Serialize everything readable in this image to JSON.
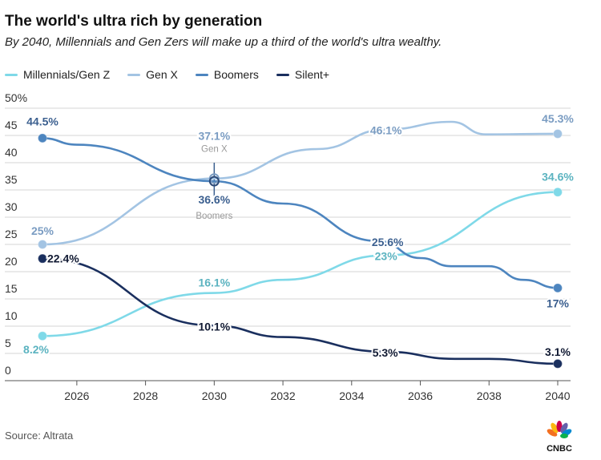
{
  "chart_data": {
    "type": "line",
    "title": "The world's ultra rich by generation",
    "subtitle": "By 2040, Millennials and Gen Zers will make up a third of the world's ultra wealthy.",
    "source": "Source: Altrata",
    "xlabel": "",
    "ylabel": "",
    "xlim": [
      2025,
      2040
    ],
    "ylim": [
      0,
      50
    ],
    "x_ticks": [
      2026,
      2028,
      2030,
      2032,
      2034,
      2036,
      2038,
      2040
    ],
    "y_ticks": [
      0,
      5,
      10,
      15,
      20,
      25,
      30,
      35,
      40,
      45,
      50
    ],
    "y_tick_labels": [
      "0",
      "5",
      "10",
      "15",
      "20",
      "25",
      "30",
      "35",
      "40",
      "45",
      "50%"
    ],
    "grid": true,
    "legend_position": "top-left",
    "series": [
      {
        "name": "Millennials/Gen Z",
        "color": "#7fd9e8",
        "label_color": "#5bb3c0",
        "points": [
          [
            2025,
            8.2
          ],
          [
            2030,
            16.1
          ],
          [
            2032,
            18.5
          ],
          [
            2035,
            23
          ],
          [
            2040,
            34.6
          ]
        ],
        "labels": [
          {
            "x": 2025,
            "y": 8.2,
            "text": "8.2%"
          },
          {
            "x": 2030,
            "y": 16.1,
            "text": "16.1%"
          },
          {
            "x": 2035,
            "y": 23,
            "text": "23%"
          },
          {
            "x": 2040,
            "y": 34.6,
            "text": "34.6%"
          }
        ]
      },
      {
        "name": "Gen X",
        "color": "#a3c4e3",
        "label_color": "#7a9cc2",
        "points": [
          [
            2025,
            25
          ],
          [
            2030,
            37.1
          ],
          [
            2033,
            42.5
          ],
          [
            2035,
            46.1
          ],
          [
            2036.9,
            47.5
          ],
          [
            2037.9,
            45.2
          ],
          [
            2040,
            45.3
          ]
        ],
        "labels": [
          {
            "x": 2025,
            "y": 25,
            "text": "25%"
          },
          {
            "x": 2030,
            "y": 37.1,
            "text": "37.1%"
          },
          {
            "x": 2035,
            "y": 46.1,
            "text": "46.1%"
          },
          {
            "x": 2040,
            "y": 45.3,
            "text": "45.3%"
          }
        ]
      },
      {
        "name": "Boomers",
        "color": "#4d85bf",
        "label_color": "#3b5f8f",
        "points": [
          [
            2025,
            44.5
          ],
          [
            2026,
            43.3
          ],
          [
            2030,
            36.6
          ],
          [
            2032,
            32.5
          ],
          [
            2034.8,
            25.6
          ],
          [
            2036,
            22.5
          ],
          [
            2036.9,
            21
          ],
          [
            2038,
            21
          ],
          [
            2039,
            18.5
          ],
          [
            2040,
            17
          ]
        ],
        "labels": [
          {
            "x": 2025,
            "y": 44.5,
            "text": "44.5%"
          },
          {
            "x": 2030,
            "y": 36.6,
            "text": "36.6%"
          },
          {
            "x": 2035,
            "y": 25.6,
            "text": "25.6%"
          },
          {
            "x": 2040,
            "y": 17,
            "text": "17%"
          }
        ]
      },
      {
        "name": "Silent+",
        "color": "#1a2f5e",
        "label_color": "#111a33",
        "points": [
          [
            2025,
            22.4
          ],
          [
            2030,
            10.1
          ],
          [
            2032,
            8
          ],
          [
            2035,
            5.3
          ],
          [
            2037,
            4
          ],
          [
            2038,
            4
          ],
          [
            2040,
            3.1
          ]
        ],
        "labels": [
          {
            "x": 2025,
            "y": 22.4,
            "text": "22.4%"
          },
          {
            "x": 2030,
            "y": 10.1,
            "text": "10.1%"
          },
          {
            "x": 2035,
            "y": 5.3,
            "text": "5.3%"
          },
          {
            "x": 2040,
            "y": 3.1,
            "text": "3.1%"
          }
        ]
      }
    ],
    "annotations": [
      {
        "x": 2030,
        "text": "Gen X",
        "series": "Gen X"
      },
      {
        "x": 2030,
        "text": "Boomers",
        "series": "Boomers"
      }
    ]
  },
  "logo": {
    "text": "CNBC"
  }
}
